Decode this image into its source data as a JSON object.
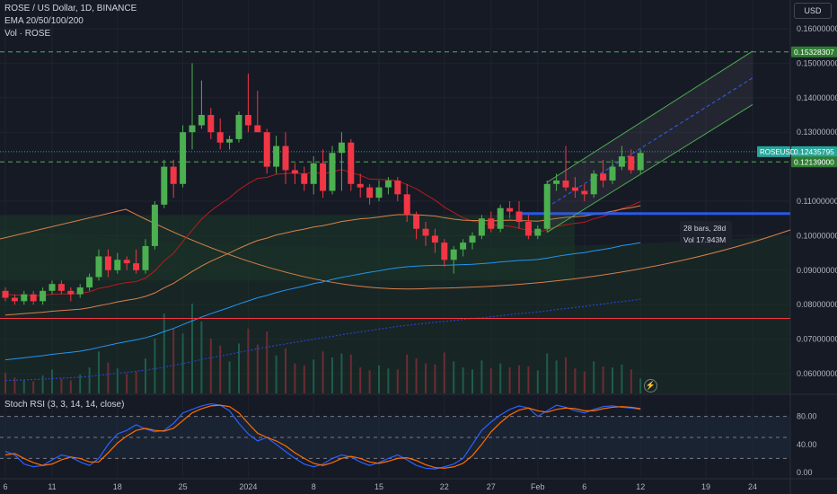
{
  "header": {
    "title": "ROSE / US Dollar, 1D, BINANCE",
    "ema_label": "EMA 20/50/100/200",
    "vol_label": "Vol · ROSE"
  },
  "currency_button": "USD",
  "price_axis": {
    "ticks": [
      "0.16000000",
      "0.15000000",
      "0.14000000",
      "0.13000000",
      "0.11000000",
      "0.10000000",
      "0.09000000",
      "0.08000000",
      "0.07000000",
      "0.06000000"
    ],
    "tick_values": [
      0.16,
      0.15,
      0.14,
      0.13,
      0.11,
      0.1,
      0.09,
      0.08,
      0.07,
      0.06
    ],
    "badges": [
      {
        "text": "0.15328307",
        "value": 0.15328307,
        "kind": "green_line"
      },
      {
        "text": "0.12435795",
        "value": 0.12435795,
        "kind": "last_price"
      },
      {
        "text": "0.12139000",
        "value": 0.12139,
        "kind": "green_line"
      }
    ],
    "symbol_badge": "ROSEUSD"
  },
  "time_axis": {
    "labels": [
      {
        "text": "6",
        "day": 0
      },
      {
        "text": "11",
        "day": 5
      },
      {
        "text": "18",
        "day": 12
      },
      {
        "text": "25",
        "day": 19
      },
      {
        "text": "2024",
        "day": 26
      },
      {
        "text": "8",
        "day": 33
      },
      {
        "text": "15",
        "day": 40
      },
      {
        "text": "22",
        "day": 47
      },
      {
        "text": "27",
        "day": 52
      },
      {
        "text": "Feb",
        "day": 57
      },
      {
        "text": "6",
        "day": 62
      },
      {
        "text": "12",
        "day": 68
      },
      {
        "text": "19",
        "day": 75
      },
      {
        "text": "24",
        "day": 80
      }
    ]
  },
  "rsi": {
    "title": "Stoch RSI (3, 3, 14, 14, close)",
    "ticks": [
      "80.00",
      "40.00",
      "0.00"
    ],
    "tick_values": [
      80,
      40,
      0
    ],
    "k": [
      30,
      25,
      12,
      8,
      10,
      18,
      25,
      22,
      15,
      10,
      20,
      40,
      55,
      60,
      68,
      62,
      58,
      60,
      70,
      85,
      90,
      95,
      98,
      96,
      88,
      70,
      55,
      45,
      50,
      40,
      30,
      20,
      12,
      8,
      12,
      20,
      25,
      22,
      15,
      10,
      14,
      20,
      25,
      18,
      10,
      6,
      5,
      8,
      12,
      20,
      40,
      60,
      72,
      82,
      90,
      95,
      92,
      80,
      88,
      96,
      93,
      88,
      85,
      90,
      94,
      95,
      93,
      92,
      90
    ],
    "d": [
      25,
      27,
      20,
      14,
      10,
      12,
      18,
      22,
      20,
      15,
      15,
      28,
      42,
      52,
      60,
      63,
      60,
      59,
      63,
      74,
      85,
      91,
      95,
      96,
      94,
      85,
      70,
      56,
      50,
      45,
      38,
      28,
      20,
      13,
      10,
      14,
      20,
      23,
      20,
      15,
      13,
      16,
      20,
      21,
      17,
      11,
      7,
      6,
      8,
      13,
      24,
      40,
      58,
      71,
      82,
      89,
      92,
      88,
      86,
      90,
      92,
      91,
      88,
      88,
      91,
      93,
      94,
      93,
      91
    ],
    "colors": {
      "k": "#2962ff",
      "d": "#ff6d00"
    }
  },
  "measure": {
    "line1": "28 bars, 28d",
    "line2": "Vol 17.943M"
  },
  "lightning": "⚡",
  "chart_data": {
    "type": "candlestick",
    "title": "ROSE / US Dollar, 1D, BINANCE",
    "start_day_label": "6",
    "candles": [
      [
        0.084,
        0.085,
        0.081,
        0.082
      ],
      [
        0.082,
        0.083,
        0.08,
        0.081
      ],
      [
        0.081,
        0.084,
        0.08,
        0.083
      ],
      [
        0.083,
        0.084,
        0.08,
        0.081
      ],
      [
        0.081,
        0.085,
        0.08,
        0.084
      ],
      [
        0.084,
        0.087,
        0.083,
        0.086
      ],
      [
        0.086,
        0.087,
        0.083,
        0.084
      ],
      [
        0.084,
        0.085,
        0.081,
        0.083
      ],
      [
        0.083,
        0.086,
        0.082,
        0.085
      ],
      [
        0.085,
        0.089,
        0.084,
        0.088
      ],
      [
        0.088,
        0.096,
        0.087,
        0.094
      ],
      [
        0.094,
        0.096,
        0.088,
        0.09
      ],
      [
        0.09,
        0.095,
        0.089,
        0.093
      ],
      [
        0.093,
        0.094,
        0.09,
        0.092
      ],
      [
        0.092,
        0.096,
        0.089,
        0.09
      ],
      [
        0.09,
        0.099,
        0.089,
        0.097
      ],
      [
        0.097,
        0.11,
        0.096,
        0.109
      ],
      [
        0.109,
        0.122,
        0.108,
        0.12
      ],
      [
        0.12,
        0.122,
        0.111,
        0.115
      ],
      [
        0.115,
        0.132,
        0.114,
        0.13
      ],
      [
        0.13,
        0.15,
        0.125,
        0.132
      ],
      [
        0.132,
        0.145,
        0.131,
        0.135
      ],
      [
        0.135,
        0.137,
        0.128,
        0.13
      ],
      [
        0.13,
        0.134,
        0.125,
        0.127
      ],
      [
        0.127,
        0.129,
        0.125,
        0.128
      ],
      [
        0.128,
        0.136,
        0.127,
        0.135
      ],
      [
        0.135,
        0.147,
        0.13,
        0.132
      ],
      [
        0.132,
        0.142,
        0.13,
        0.13
      ],
      [
        0.13,
        0.131,
        0.118,
        0.12
      ],
      [
        0.12,
        0.129,
        0.118,
        0.126
      ],
      [
        0.126,
        0.13,
        0.115,
        0.119
      ],
      [
        0.119,
        0.121,
        0.115,
        0.118
      ],
      [
        0.118,
        0.12,
        0.113,
        0.115
      ],
      [
        0.115,
        0.123,
        0.112,
        0.121
      ],
      [
        0.121,
        0.125,
        0.111,
        0.113
      ],
      [
        0.113,
        0.126,
        0.112,
        0.124
      ],
      [
        0.124,
        0.13,
        0.113,
        0.127
      ],
      [
        0.127,
        0.128,
        0.113,
        0.115
      ],
      [
        0.115,
        0.118,
        0.111,
        0.114
      ],
      [
        0.114,
        0.115,
        0.109,
        0.111
      ],
      [
        0.111,
        0.116,
        0.11,
        0.114
      ],
      [
        0.114,
        0.117,
        0.112,
        0.116
      ],
      [
        0.116,
        0.117,
        0.11,
        0.112
      ],
      [
        0.112,
        0.115,
        0.104,
        0.106
      ],
      [
        0.106,
        0.107,
        0.099,
        0.102
      ],
      [
        0.102,
        0.104,
        0.097,
        0.1
      ],
      [
        0.1,
        0.102,
        0.095,
        0.098
      ],
      [
        0.098,
        0.099,
        0.091,
        0.093
      ],
      [
        0.093,
        0.097,
        0.089,
        0.096
      ],
      [
        0.096,
        0.099,
        0.094,
        0.098
      ],
      [
        0.098,
        0.101,
        0.096,
        0.1
      ],
      [
        0.1,
        0.106,
        0.099,
        0.105
      ],
      [
        0.105,
        0.107,
        0.101,
        0.102
      ],
      [
        0.102,
        0.109,
        0.101,
        0.108
      ],
      [
        0.108,
        0.11,
        0.105,
        0.107
      ],
      [
        0.107,
        0.11,
        0.102,
        0.104
      ],
      [
        0.104,
        0.106,
        0.099,
        0.1
      ],
      [
        0.1,
        0.103,
        0.099,
        0.102
      ],
      [
        0.102,
        0.116,
        0.101,
        0.115
      ],
      [
        0.115,
        0.118,
        0.113,
        0.116
      ],
      [
        0.116,
        0.126,
        0.113,
        0.114
      ],
      [
        0.114,
        0.117,
        0.111,
        0.113
      ],
      [
        0.113,
        0.115,
        0.11,
        0.112
      ],
      [
        0.112,
        0.119,
        0.111,
        0.118
      ],
      [
        0.118,
        0.122,
        0.114,
        0.116
      ],
      [
        0.116,
        0.122,
        0.115,
        0.12
      ],
      [
        0.12,
        0.126,
        0.119,
        0.123
      ],
      [
        0.123,
        0.125,
        0.118,
        0.119
      ],
      [
        0.119,
        0.125,
        0.118,
        0.124
      ]
    ],
    "volume": [
      2.1,
      1.6,
      1.4,
      1.2,
      1.8,
      2.4,
      1.5,
      1.3,
      1.9,
      2.6,
      4.2,
      3.1,
      2.5,
      2.0,
      2.2,
      3.5,
      5.5,
      8.0,
      6.5,
      6.0,
      9.0,
      7.2,
      5.5,
      4.8,
      3.2,
      5.0,
      6.5,
      4.9,
      6.2,
      3.8,
      4.5,
      3.0,
      2.8,
      3.4,
      4.2,
      3.6,
      4.0,
      3.9,
      2.6,
      2.3,
      2.8,
      2.5,
      2.4,
      3.9,
      3.5,
      3.0,
      2.9,
      4.1,
      3.2,
      2.6,
      2.4,
      3.3,
      2.5,
      3.0,
      2.6,
      2.8,
      2.7,
      2.3,
      4.0,
      3.3,
      3.6,
      2.5,
      2.2,
      3.2,
      2.7,
      2.6,
      2.9,
      2.4,
      1.5
    ],
    "ema": {
      "ema20": [
        0.083,
        0.0828,
        0.0828,
        0.0826,
        0.0827,
        0.083,
        0.0831,
        0.0831,
        0.0833,
        0.0837,
        0.0847,
        0.0852,
        0.0859,
        0.0864,
        0.0867,
        0.0877,
        0.0898,
        0.0927,
        0.0949,
        0.0983,
        0.1016,
        0.1048,
        0.1072,
        0.1092,
        0.111,
        0.1133,
        0.1151,
        0.1166,
        0.1169,
        0.1178,
        0.118,
        0.1182,
        0.1179,
        0.1184,
        0.1179,
        0.1185,
        0.1192,
        0.1183,
        0.1175,
        0.1164,
        0.1163,
        0.1162,
        0.1159,
        0.1148,
        0.1136,
        0.1119,
        0.1103,
        0.1083,
        0.1067,
        0.1052,
        0.1042,
        0.1038,
        0.1031,
        0.103,
        0.1027,
        0.1022,
        0.1014,
        0.1009,
        0.1018,
        0.1026,
        0.1032,
        0.1036,
        0.1039,
        0.1049,
        0.1056,
        0.1066,
        0.1079,
        0.1087,
        0.1099
      ],
      "ema50": [
        0.077,
        0.0772,
        0.0774,
        0.0776,
        0.0778,
        0.0781,
        0.0783,
        0.0785,
        0.0787,
        0.0791,
        0.0797,
        0.0802,
        0.0808,
        0.0813,
        0.0817,
        0.0824,
        0.0834,
        0.0849,
        0.0862,
        0.0879,
        0.0896,
        0.0912,
        0.0926,
        0.0938,
        0.095,
        0.0963,
        0.0975,
        0.0986,
        0.0993,
        0.1002,
        0.1008,
        0.1014,
        0.1019,
        0.1025,
        0.1029,
        0.1035,
        0.1041,
        0.1045,
        0.1049,
        0.1051,
        0.1054,
        0.1058,
        0.1061,
        0.1061,
        0.1061,
        0.1059,
        0.1057,
        0.1052,
        0.1048,
        0.1045,
        0.1044,
        0.1044,
        0.1043,
        0.1044,
        0.1045,
        0.1044,
        0.1043,
        0.1042,
        0.1046,
        0.105,
        0.1053,
        0.1055,
        0.1057,
        0.1062,
        0.1066,
        0.1071,
        0.1077,
        0.1081,
        0.1087
      ],
      "ema100": [
        0.064,
        0.0643,
        0.0646,
        0.0649,
        0.0652,
        0.0656,
        0.0659,
        0.0662,
        0.0665,
        0.067,
        0.0676,
        0.0682,
        0.0688,
        0.0693,
        0.0698,
        0.0704,
        0.0712,
        0.0722,
        0.0731,
        0.0742,
        0.0753,
        0.0764,
        0.0774,
        0.0783,
        0.0792,
        0.0802,
        0.0811,
        0.082,
        0.0827,
        0.0835,
        0.0842,
        0.0848,
        0.0854,
        0.0861,
        0.0866,
        0.0873,
        0.0879,
        0.0884,
        0.0889,
        0.0894,
        0.0898,
        0.0903,
        0.0907,
        0.091,
        0.0912,
        0.0913,
        0.0914,
        0.0914,
        0.0915,
        0.0916,
        0.0917,
        0.0919,
        0.0921,
        0.0924,
        0.0926,
        0.0928,
        0.0929,
        0.0931,
        0.0935,
        0.094,
        0.0944,
        0.0948,
        0.0951,
        0.0956,
        0.096,
        0.0965,
        0.0971,
        0.0975,
        0.098
      ],
      "ema200": [
        0.058,
        0.0581,
        0.0582,
        0.0583,
        0.0584,
        0.0586,
        0.0587,
        0.0588,
        0.059,
        0.0592,
        0.0595,
        0.0598,
        0.0601,
        0.0604,
        0.0607,
        0.061,
        0.0614,
        0.0619,
        0.0624,
        0.0629,
        0.0635,
        0.0641,
        0.0646,
        0.0651,
        0.0656,
        0.0662,
        0.0667,
        0.0672,
        0.0677,
        0.0682,
        0.0686,
        0.0691,
        0.0695,
        0.07,
        0.0704,
        0.0708,
        0.0713,
        0.0717,
        0.0721,
        0.0725,
        0.0729,
        0.0733,
        0.0737,
        0.074,
        0.0743,
        0.0746,
        0.0749,
        0.0751,
        0.0754,
        0.0757,
        0.076,
        0.0762,
        0.0765,
        0.0768,
        0.0771,
        0.0774,
        0.0776,
        0.0779,
        0.0782,
        0.0786,
        0.0789,
        0.0792,
        0.0795,
        0.0799,
        0.0802,
        0.0806,
        0.0809,
        0.0812,
        0.0816
      ]
    },
    "horizontal_lines": [
      {
        "value": 0.15328307,
        "color": "#4caf50",
        "style": "dashed"
      },
      {
        "value": 0.12139,
        "color": "#4caf50",
        "style": "dashed"
      },
      {
        "value": 0.076,
        "color": "#f23645",
        "style": "solid"
      }
    ],
    "channel": {
      "start_day": 58,
      "end_day": 80,
      "lower_start": 0.101,
      "lower_end": 0.138,
      "upper_start": 0.1155,
      "upper_end": 0.1535
    },
    "colors": {
      "up": "#26a69a",
      "up_body": "#4caf50",
      "down": "#f23645",
      "ema20": "#b71c1c",
      "ema50": "#d9814a",
      "ema100": "#2196f3",
      "ema200": "#2941c9"
    },
    "ylim": [
      0.055,
      0.165
    ]
  }
}
